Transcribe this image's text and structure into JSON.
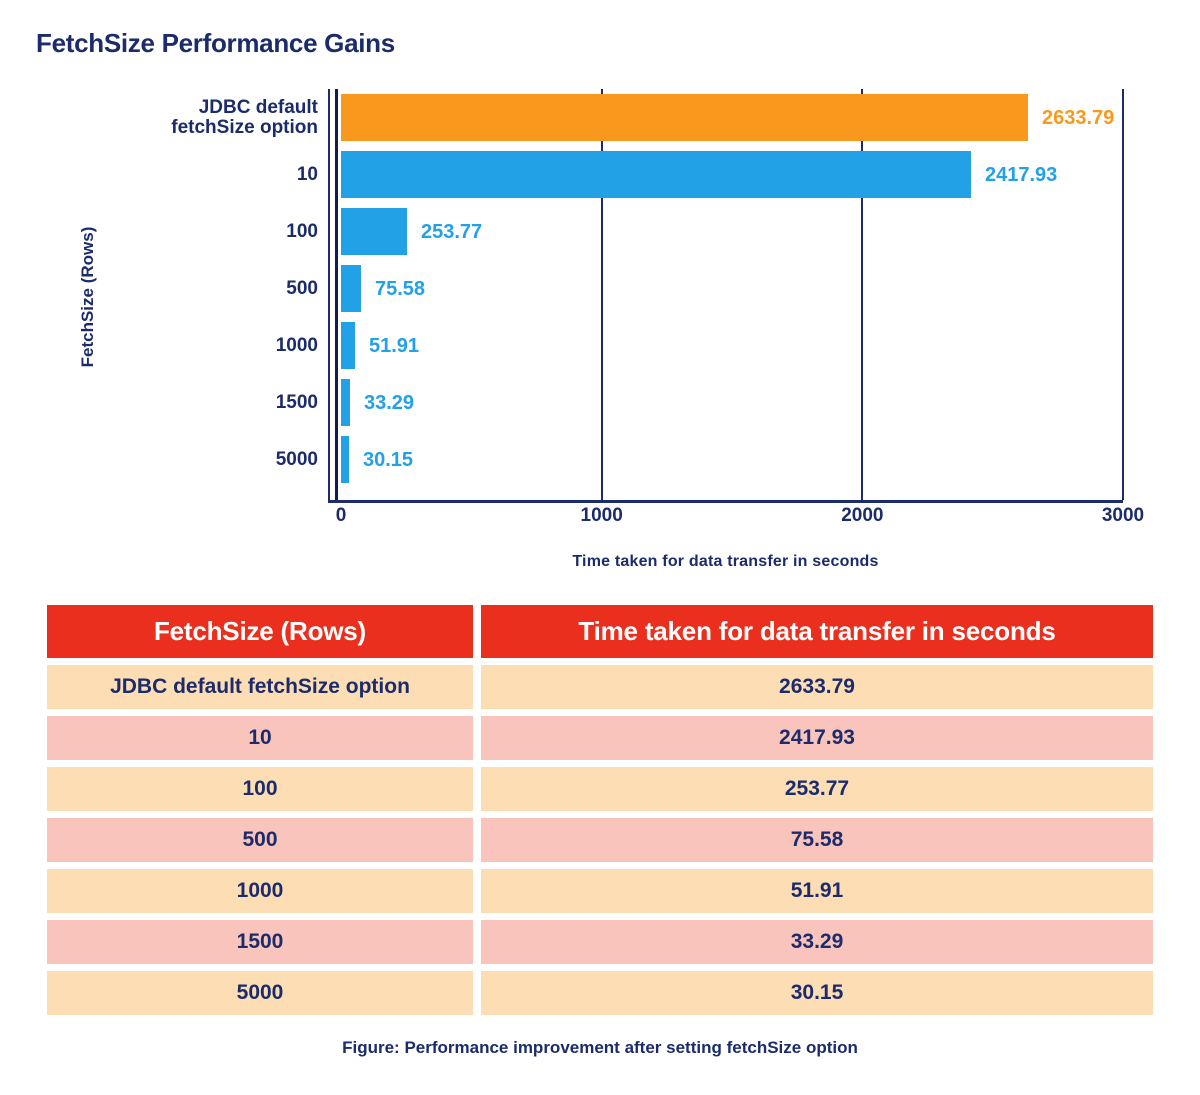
{
  "title": "FetchSize Performance Gains",
  "chart_data": {
    "type": "bar",
    "orientation": "horizontal",
    "title": "FetchSize Performance Gains",
    "categories": [
      "JDBC default fetchSize option",
      "10",
      "100",
      "500",
      "1000",
      "1500",
      "5000"
    ],
    "category_display_lines": [
      [
        "JDBC default",
        "fetchSize option"
      ],
      [
        "10"
      ],
      [
        "100"
      ],
      [
        "500"
      ],
      [
        "1000"
      ],
      [
        "1500"
      ],
      [
        "5000"
      ]
    ],
    "values": [
      2633.79,
      2417.93,
      253.77,
      75.58,
      51.91,
      33.29,
      30.15
    ],
    "value_labels": [
      "2633.79",
      "2417.93",
      "253.77",
      "75.58",
      "51.91",
      "33.29",
      "30.15"
    ],
    "bar_colors": [
      "#F8991D",
      "#22A1E6",
      "#22A1E6",
      "#22A1E6",
      "#22A1E6",
      "#22A1E6",
      "#22A1E6"
    ],
    "xlabel": "Time taken for data transfer in seconds",
    "ylabel": "FetchSize (Rows)",
    "xlim": [
      0,
      3000
    ],
    "xticks": [
      0,
      1000,
      2000,
      3000
    ],
    "grid": true,
    "legend_position": "none"
  },
  "table": {
    "headers": [
      "FetchSize (Rows)",
      "Time taken for data transfer in seconds"
    ],
    "rows": [
      [
        "JDBC default fetchSize option",
        "2633.79"
      ],
      [
        "10",
        "2417.93"
      ],
      [
        "100",
        "253.77"
      ],
      [
        "500",
        "75.58"
      ],
      [
        "1000",
        "51.91"
      ],
      [
        "1500",
        "33.29"
      ],
      [
        "5000",
        "30.15"
      ]
    ]
  },
  "caption": "Figure: Performance improvement after setting fetchSize option",
  "colors": {
    "navy_text": "#1B2B6B",
    "axis_line": "#131C4E",
    "bar_orange": "#F8991D",
    "bar_blue": "#22A1E6",
    "header_red": "#EB2F1E",
    "row_cream": "#FCDDB4",
    "row_pink": "#F8C4BB",
    "header_text": "#FFFFFF"
  }
}
